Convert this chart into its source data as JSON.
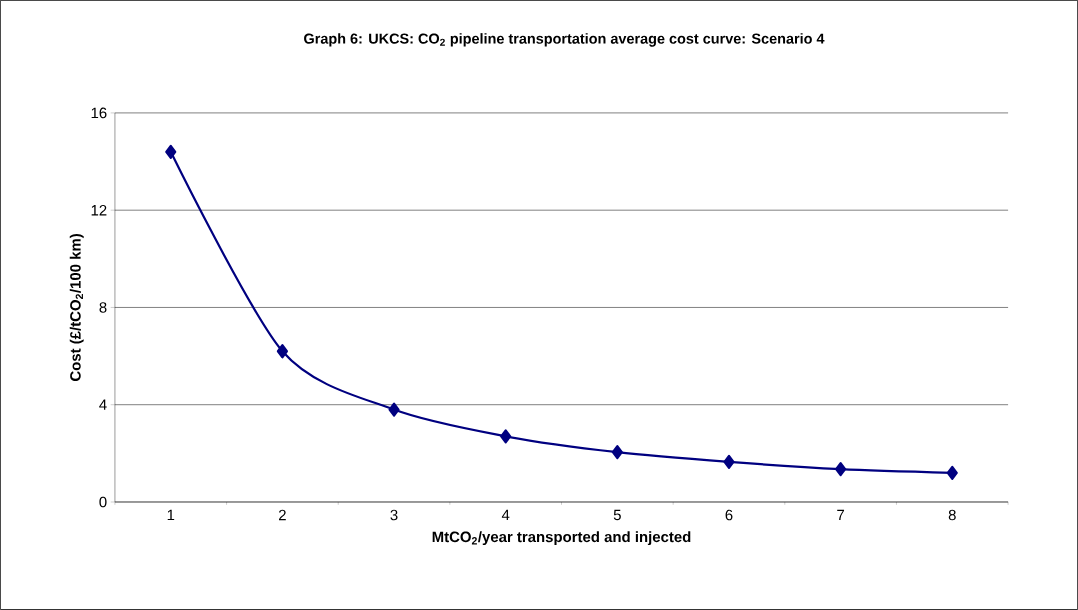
{
  "chart_data": {
    "type": "line",
    "title": "Graph 6: UKCS: CO$_{2}$ pipeline transportation average cost curve: Scenario 4",
    "xlabel": "MtCO$_{2}$/year transported and injected",
    "ylabel": "Cost (£/tCO$_{2}$/100 km)",
    "categories": [
      "1",
      "2",
      "3",
      "4",
      "5",
      "6",
      "7",
      "8"
    ],
    "values": [
      14.4,
      6.2,
      3.8,
      2.7,
      2.05,
      1.65,
      1.35,
      1.2
    ],
    "color": "#000080",
    "ylim": [
      0,
      16
    ],
    "yticks": [
      0,
      4,
      8,
      12,
      16
    ],
    "grid": "y",
    "marker": "diamond",
    "line_style": "solid"
  }
}
